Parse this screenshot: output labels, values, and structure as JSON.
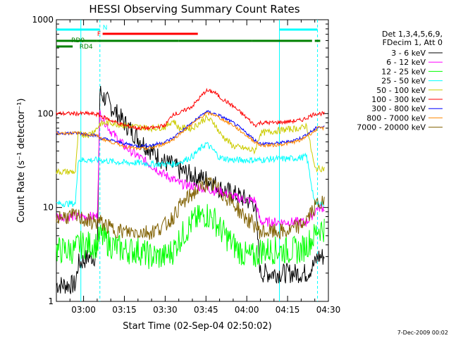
{
  "chart_data": {
    "type": "line",
    "title": "HESSI Observing Summary Count Rates",
    "xlabel": "Start Time (02-Sep-04 02:50:02)",
    "ylabel": "Count Rate (s⁻¹ detector⁻¹)",
    "yscale": "log",
    "xlim": [
      "02:50",
      "04:30"
    ],
    "ylim": [
      1,
      1000
    ],
    "grid": false,
    "x_ticks": [
      "03:00",
      "03:15",
      "03:30",
      "03:45",
      "04:00",
      "04:15",
      "04:30"
    ],
    "y_ticks": [
      "1",
      "10",
      "100",
      "1000"
    ],
    "legend_position": "right",
    "legend_header": [
      "Det 1,3,4,5,6,9,",
      "FDecim 1, Att 0"
    ],
    "footer_date": "7-Dec-2009 00:02",
    "colors": {
      "3 - 6 keV": "#000000",
      "6 - 12 keV": "#ff00ff",
      "12 - 25 keV": "#00ff00",
      "25 - 50 keV": "#00ffff",
      "50 - 100 keV": "#cccc00",
      "100 - 300 keV": "#ff0000",
      "300 - 800 keV": "#0000ff",
      "800 - 7000 keV": "#ff8800",
      "7000 - 20000 keV": "#806000",
      "flags_cyan": "#00ffff",
      "flags_red": "#ff0000",
      "flags_green": "#008000"
    },
    "x": [
      "02:50",
      "02:57",
      "02:58",
      "03:02",
      "03:05",
      "03:06",
      "03:10",
      "03:15",
      "03:20",
      "03:25",
      "03:30",
      "03:33",
      "03:35",
      "03:40",
      "03:45",
      "03:48",
      "03:50",
      "03:55",
      "04:00",
      "04:03",
      "04:05",
      "04:10",
      "04:15",
      "04:20",
      "04:22",
      "04:25",
      "04:26"
    ],
    "series": [
      {
        "name": "3 - 6 keV",
        "values": [
          1.5,
          1.5,
          2.5,
          3,
          3,
          170,
          120,
          80,
          55,
          40,
          30,
          28,
          25,
          22,
          20,
          18,
          16,
          14,
          12,
          11,
          2,
          2,
          2,
          2,
          2,
          2.5,
          3
        ]
      },
      {
        "name": "6 - 12 keV",
        "values": [
          8,
          8,
          8,
          8,
          8,
          100,
          65,
          45,
          35,
          28,
          22,
          20,
          18,
          17,
          16,
          15,
          15,
          13,
          12,
          12,
          7,
          7,
          7,
          7,
          7,
          9,
          10
        ]
      },
      {
        "name": "12 - 25 keV",
        "values": [
          3.5,
          3.5,
          4,
          4,
          4,
          5,
          4,
          3.5,
          3.5,
          3,
          3,
          3.5,
          4.5,
          7,
          8.5,
          7.5,
          6,
          4,
          3,
          3,
          3.5,
          3.5,
          3.5,
          3.5,
          4,
          5,
          6
        ]
      },
      {
        "name": "25 - 50 keV",
        "values": [
          11,
          11,
          32,
          32,
          32,
          32,
          31,
          30,
          30,
          29,
          29,
          29,
          30,
          35,
          48,
          40,
          34,
          32,
          32,
          32,
          32,
          33,
          33,
          34,
          35,
          11,
          11
        ]
      },
      {
        "name": "50 - 100 keV",
        "values": [
          24,
          24,
          60,
          60,
          70,
          78,
          80,
          75,
          72,
          70,
          72,
          85,
          70,
          70,
          90,
          80,
          62,
          45,
          42,
          40,
          62,
          65,
          68,
          70,
          75,
          26,
          26
        ]
      },
      {
        "name": "100 - 300 keV",
        "values": [
          100,
          100,
          100,
          100,
          98,
          95,
          85,
          75,
          70,
          70,
          75,
          100,
          100,
          120,
          175,
          170,
          150,
          120,
          90,
          75,
          80,
          80,
          82,
          85,
          90,
          100,
          100
        ]
      },
      {
        "name": "300 - 800 keV",
        "values": [
          62,
          62,
          62,
          60,
          58,
          55,
          52,
          48,
          45,
          46,
          50,
          55,
          62,
          80,
          105,
          100,
          95,
          80,
          62,
          52,
          48,
          48,
          50,
          55,
          60,
          68,
          72
        ]
      },
      {
        "name": "800 - 7000 keV",
        "values": [
          62,
          62,
          62,
          60,
          58,
          55,
          50,
          45,
          42,
          43,
          48,
          53,
          60,
          78,
          100,
          98,
          90,
          75,
          58,
          50,
          46,
          46,
          48,
          52,
          58,
          65,
          70
        ]
      },
      {
        "name": "7000 - 20000 keV",
        "values": [
          8,
          8,
          8,
          7,
          7,
          7,
          6,
          5.5,
          5.5,
          5.5,
          6.5,
          8,
          10,
          14,
          18,
          17,
          15,
          11,
          7.5,
          6.5,
          5.5,
          5.5,
          5.5,
          6.5,
          7.5,
          10,
          11
        ]
      }
    ],
    "flag_labels": {
      "n": "N",
      "f": "F",
      "rd0": "RD0",
      "rd4": "RD4"
    },
    "flags": {
      "n": [
        [
          "02:50",
          "03:06"
        ],
        [
          "04:12",
          "04:26"
        ]
      ],
      "f": [
        [
          "03:07",
          "03:42"
        ]
      ],
      "rd0": [
        [
          "02:50",
          "03:05"
        ],
        [
          "03:05",
          "03:35"
        ],
        [
          "03:35",
          "04:02"
        ],
        [
          "04:02",
          "04:24"
        ],
        [
          "04:25",
          "04:27"
        ]
      ],
      "rd4": [
        [
          "02:50",
          "02:56"
        ]
      ]
    },
    "eclipse_lines": [
      "03:06",
      "04:26"
    ],
    "saa_lines": [
      "02:59",
      "04:12"
    ]
  }
}
